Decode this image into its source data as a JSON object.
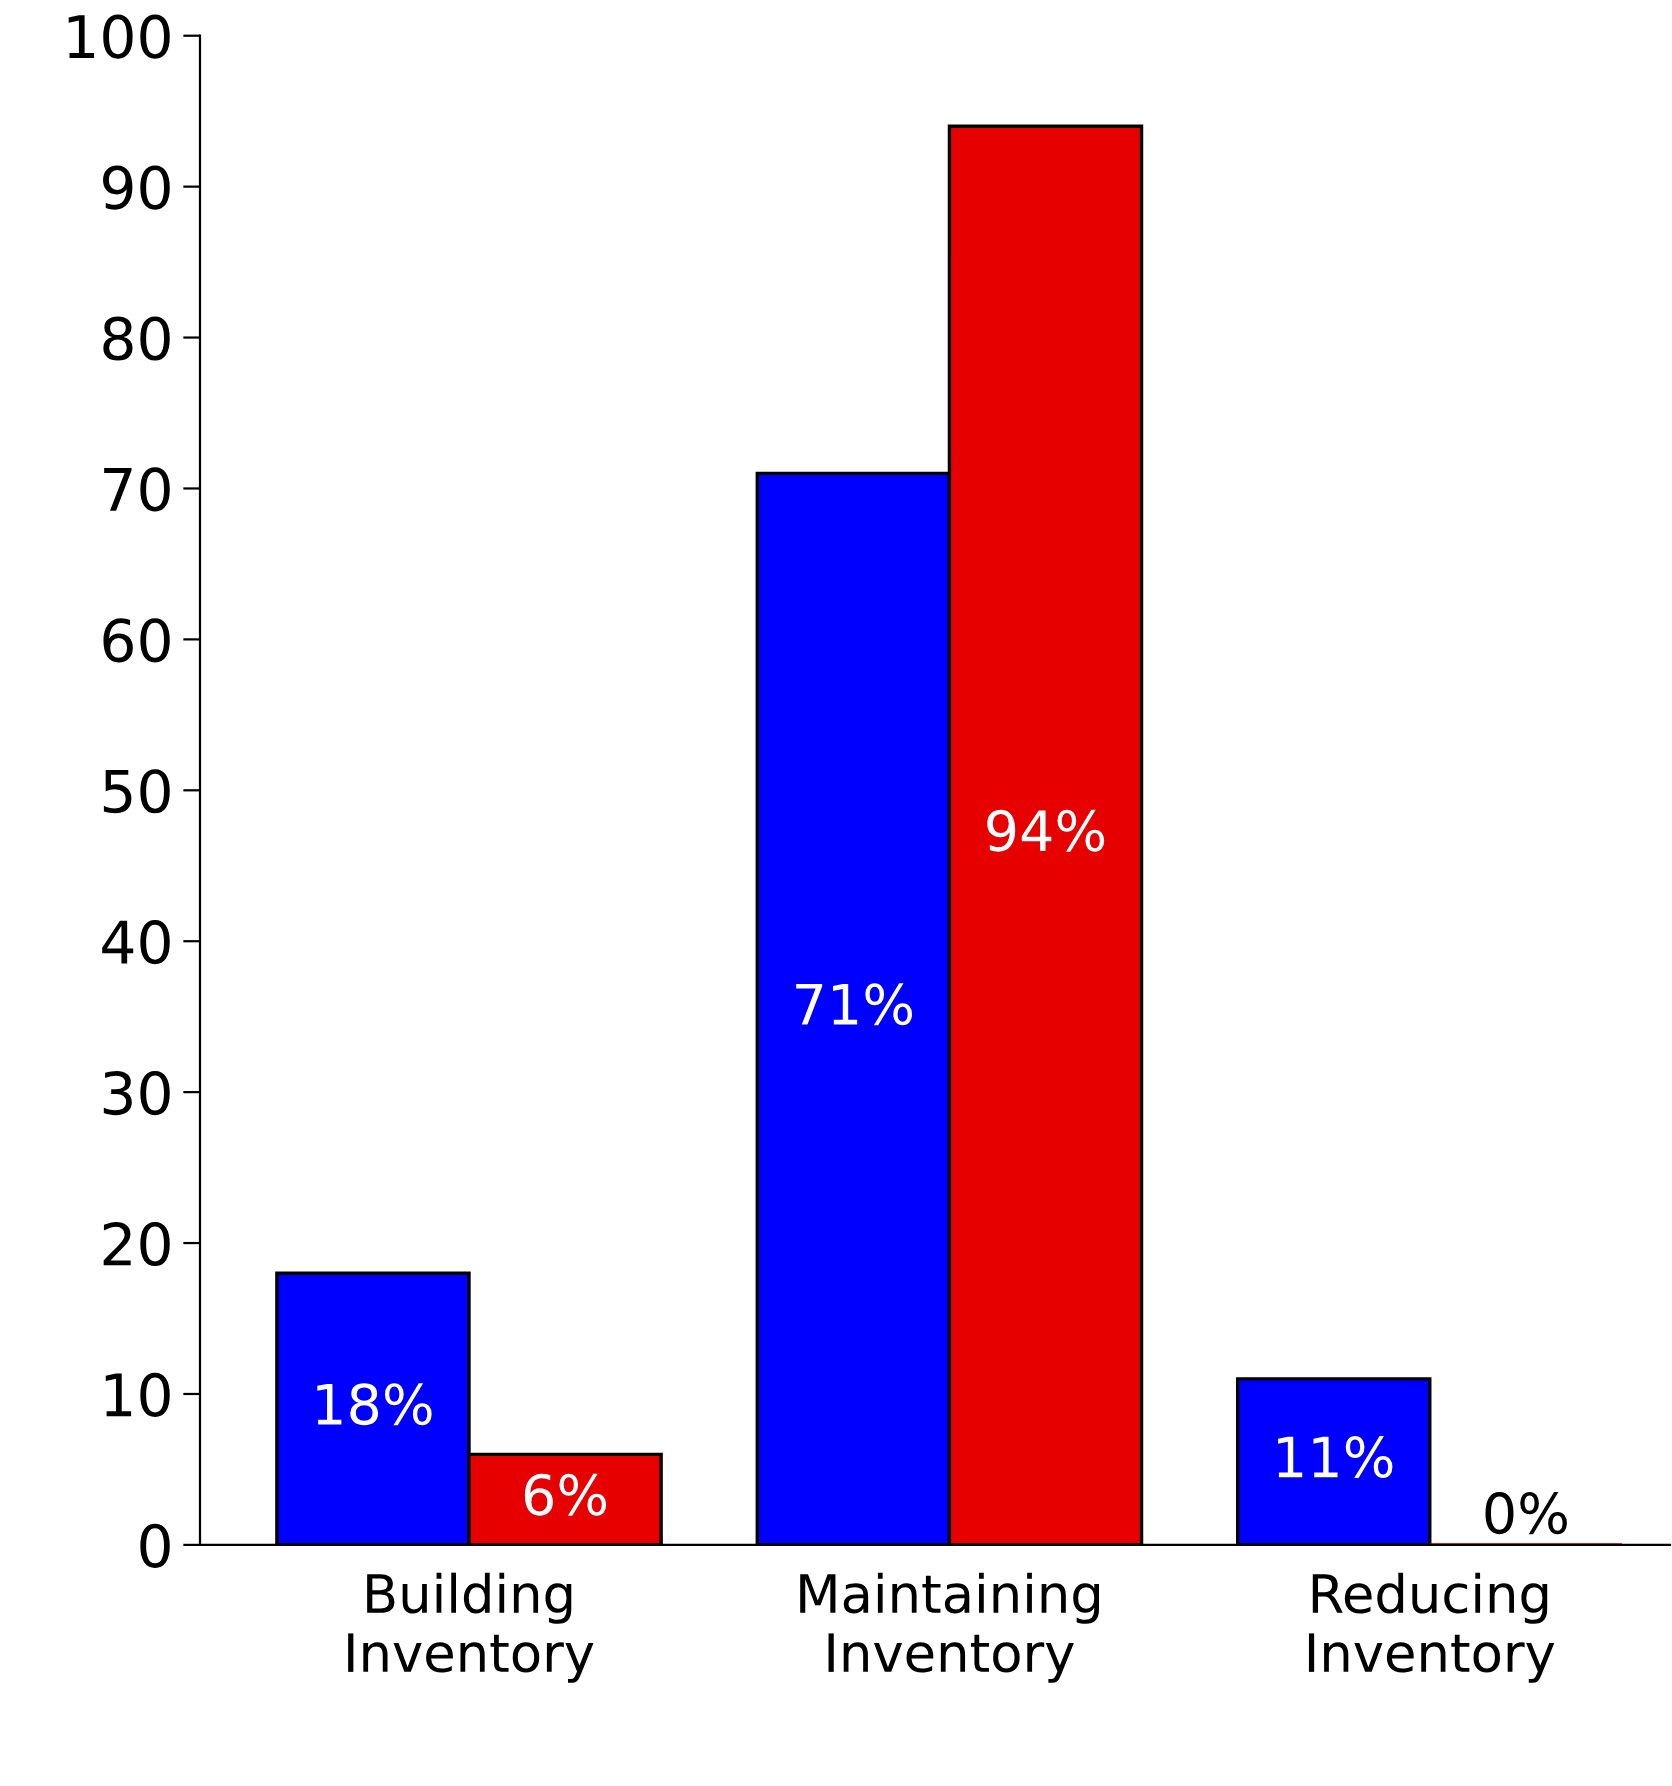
{
  "chart_data": {
    "type": "bar",
    "categories": [
      "Building\nInventory",
      "Maintaining\nInventory",
      "Reducing\nInventory"
    ],
    "series": [
      {
        "color": "#0000ff",
        "values": [
          18,
          71,
          11
        ],
        "value_labels": [
          "18%",
          "71%",
          "11%"
        ]
      },
      {
        "color": "#e60000",
        "values": [
          6,
          94,
          0
        ],
        "value_labels": [
          "6%",
          "94%",
          "0%"
        ]
      }
    ],
    "ylim": [
      0,
      100
    ],
    "yticks": [
      0,
      10,
      20,
      30,
      40,
      50,
      60,
      70,
      80,
      90,
      100
    ],
    "grid": false,
    "legend": false
  }
}
